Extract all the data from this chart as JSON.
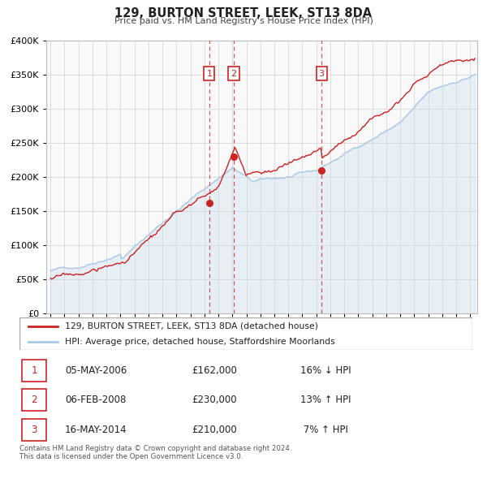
{
  "title": "129, BURTON STREET, LEEK, ST13 8DA",
  "subtitle": "Price paid vs. HM Land Registry's House Price Index (HPI)",
  "hpi_color": "#a8c8e8",
  "hpi_fill_color": "#c8dff0",
  "price_color": "#cc2222",
  "background_color": "#ffffff",
  "grid_color": "#d8d8d8",
  "ylim": [
    0,
    400000
  ],
  "yticks": [
    0,
    50000,
    100000,
    150000,
    200000,
    250000,
    300000,
    350000,
    400000
  ],
  "xlim_start": 1994.7,
  "xlim_end": 2025.5,
  "transactions": [
    {
      "num": 1,
      "date_str": "05-MAY-2006",
      "year": 2006.35,
      "price": 162000
    },
    {
      "num": 2,
      "date_str": "06-FEB-2008",
      "year": 2008.1,
      "price": 230000
    },
    {
      "num": 3,
      "date_str": "16-MAY-2014",
      "year": 2014.37,
      "price": 210000
    }
  ],
  "legend_house_label": "129, BURTON STREET, LEEK, ST13 8DA (detached house)",
  "legend_hpi_label": "HPI: Average price, detached house, Staffordshire Moorlands",
  "footer": "Contains HM Land Registry data © Crown copyright and database right 2024.\nThis data is licensed under the Open Government Licence v3.0.",
  "table_rows": [
    {
      "num": 1,
      "date": "05-MAY-2006",
      "price": "£162,000",
      "pct": "16% ↓ HPI"
    },
    {
      "num": 2,
      "date": "06-FEB-2008",
      "price": "£230,000",
      "pct": "13% ↑ HPI"
    },
    {
      "num": 3,
      "date": "16-MAY-2014",
      "price": "£210,000",
      "pct": " 7% ↑ HPI"
    }
  ]
}
